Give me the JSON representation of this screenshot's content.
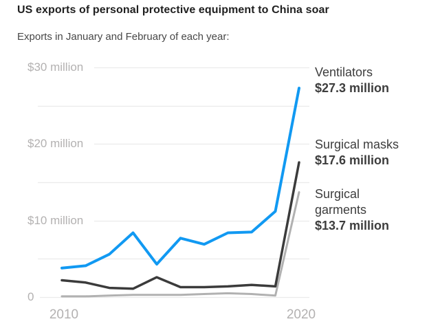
{
  "page": {
    "title": "US exports of personal protective equipment to China soar",
    "subtitle": "Exports in January and February of each year:"
  },
  "colors": {
    "ventilators": "#1199f2",
    "surgical_masks": "#3b3b3b",
    "surgical_garments": "#b1b1b1",
    "gridline": "#ebebeb",
    "axis_label": "#b3b1b1",
    "background": "#ffffff"
  },
  "chart_data": {
    "type": "line",
    "title": "US exports of personal protective equipment to China soar",
    "subtitle": "Exports in January and February of each year:",
    "unit": "million USD",
    "x": [
      2010,
      2011,
      2012,
      2013,
      2014,
      2015,
      2016,
      2017,
      2018,
      2019,
      2020
    ],
    "ylim": [
      0,
      30
    ],
    "grid": true,
    "y_gridline_step": 5,
    "y_axis": [
      {
        "value": 30,
        "label": "$30 million"
      },
      {
        "value": 25,
        "label": ""
      },
      {
        "value": 20,
        "label": "$20 million"
      },
      {
        "value": 15,
        "label": ""
      },
      {
        "value": 10,
        "label": "$10 million"
      },
      {
        "value": 5,
        "label": ""
      },
      {
        "value": 0,
        "label": "0"
      }
    ],
    "x_axis": [
      {
        "value": 2010,
        "label": "2010"
      },
      {
        "value": 2020,
        "label": "2020"
      }
    ],
    "legend_position": "right-annotations",
    "series": [
      {
        "name": "Ventilators",
        "color_key": "ventilators",
        "final_label": "$27.3 million",
        "values": [
          3.8,
          4.1,
          5.6,
          8.4,
          4.3,
          7.7,
          6.9,
          8.4,
          8.5,
          11.2,
          27.3
        ]
      },
      {
        "name": "Surgical masks",
        "color_key": "surgical_masks",
        "final_label": "$17.6 million",
        "values": [
          2.2,
          1.9,
          1.2,
          1.1,
          2.6,
          1.3,
          1.3,
          1.4,
          1.6,
          1.4,
          17.6
        ]
      },
      {
        "name": "Surgical garments",
        "color_key": "surgical_garments",
        "final_label": "$13.7 million",
        "values": [
          0.1,
          0.1,
          0.2,
          0.3,
          0.3,
          0.3,
          0.4,
          0.5,
          0.4,
          0.2,
          13.7
        ]
      }
    ],
    "annotations": [
      {
        "lines": [
          "Ventilators"
        ],
        "value": "$27.3 million"
      },
      {
        "lines": [
          "Surgical masks"
        ],
        "value": "$17.6 million"
      },
      {
        "lines": [
          "Surgical",
          "garments"
        ],
        "value": "$13.7 million"
      }
    ]
  }
}
